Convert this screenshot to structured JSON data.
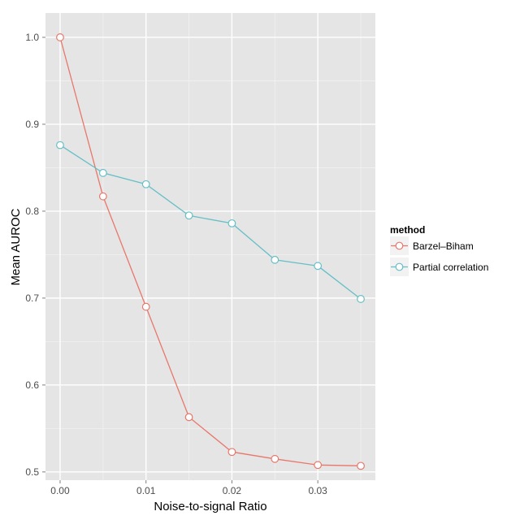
{
  "chart_data": {
    "type": "line",
    "xlabel": "Noise-to-signal Ratio",
    "ylabel": "Mean AUROC",
    "xlim": [
      -0.0017,
      0.0367
    ],
    "ylim": [
      0.4905,
      1.028
    ],
    "x_ticks": [
      0.0,
      0.01,
      0.02,
      0.03
    ],
    "x_tick_labels": [
      "0.00",
      "0.01",
      "0.02",
      "0.03"
    ],
    "y_ticks": [
      0.5,
      0.6,
      0.7,
      0.8,
      0.9,
      1.0
    ],
    "y_tick_labels": [
      "0.5",
      "0.6",
      "0.7",
      "0.8",
      "0.9",
      "1.0"
    ],
    "grid": true,
    "legend_position": "right",
    "legend_title": "method",
    "x": [
      0.0,
      0.005,
      0.01,
      0.015,
      0.02,
      0.025,
      0.03,
      0.035
    ],
    "series": [
      {
        "name": "Barzel–Biham",
        "color": "#e8776b",
        "values": [
          1.0,
          0.817,
          0.69,
          0.563,
          0.523,
          0.515,
          0.508,
          0.507
        ]
      },
      {
        "name": "Partial correlation",
        "color": "#66bfc6",
        "values": [
          0.876,
          0.844,
          0.831,
          0.795,
          0.786,
          0.744,
          0.737,
          0.699
        ]
      }
    ],
    "colors": {
      "panel": "#e5e5e5",
      "grid_major": "#ffffff",
      "grid_minor": "#f2f2f2"
    }
  }
}
